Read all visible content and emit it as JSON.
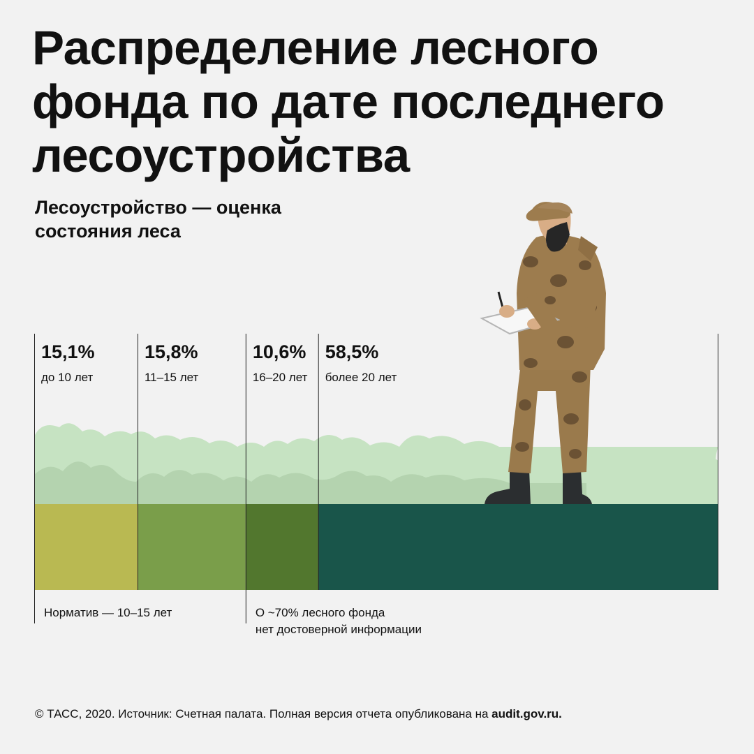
{
  "title": "Распределение лесного\nфонда по дате последнего\nлесоустройства",
  "subtitle": "Лесоустройство — оценка\nсостояния леса",
  "chart_data": {
    "type": "bar",
    "orientation": "horizontal-stacked",
    "unit": "%",
    "title": "Распределение лесного фонда по дате последнего лесоустройства",
    "series": [
      {
        "label": "15,1%",
        "value": 15.1,
        "range": "до 10 лет",
        "color": "#b9b952"
      },
      {
        "label": "15,8%",
        "value": 15.8,
        "range": "11–15 лет",
        "color": "#7a9e4a"
      },
      {
        "label": "10,6%",
        "value": 10.6,
        "range": "16–20 лет",
        "color": "#52772e"
      },
      {
        "label": "58,5%",
        "value": 58.5,
        "range": "более 20 лет",
        "color": "#19554a"
      }
    ],
    "annotations": [
      {
        "text_lines": [
          "Норматив — 10–15 лет"
        ],
        "anchor_segment": 0
      },
      {
        "text_lines": [
          "О ~70% лесного фонда",
          "нет достоверной информации"
        ],
        "anchor_segment": 2
      }
    ]
  },
  "colors": {
    "background": "#f2f2f2",
    "bush_light": "#c6e3c2",
    "bush_mid": "#b4d3af"
  },
  "illustration": "forester-in-camouflage-with-clipboard-icon",
  "footer": {
    "prefix": "© ТАСС, 2020. Источник: Счетная палата. Полная версия отчета опубликована на ",
    "link": "audit.gov.ru."
  }
}
